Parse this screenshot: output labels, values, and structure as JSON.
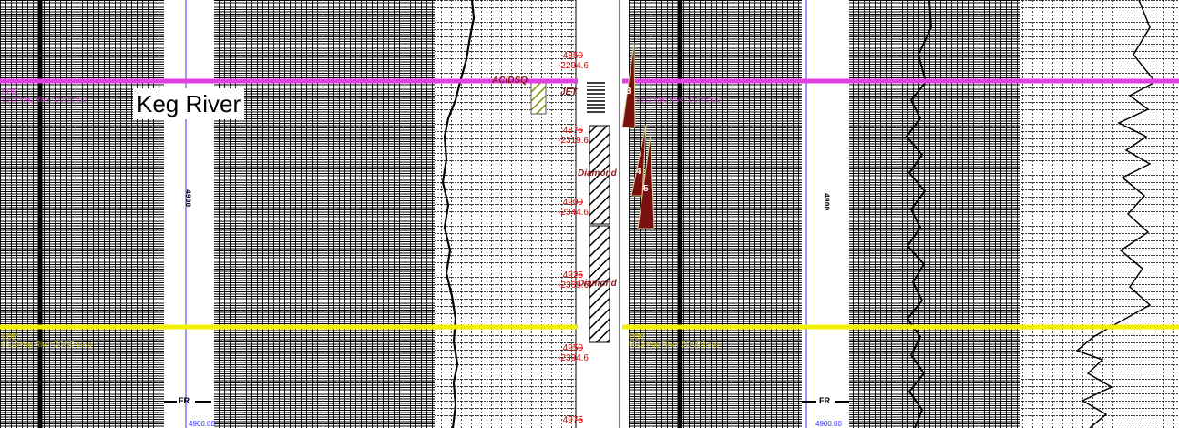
{
  "formation_top": {
    "name": "Keg River",
    "line_color": "#e040e0",
    "left_small_label": "EOR",
    "left_small_sub": "5512 Keg River ZONE top",
    "right_small_sub": "5512 Keg River ZONE top"
  },
  "base_marker": {
    "line_color": "#f5f000",
    "left_small_label": "EOR",
    "left_small_sub": "5512 Keg River ZONE base",
    "right_small_label": "EOR",
    "right_small_sub": "5512 Keg River ZONE base"
  },
  "depth_scale": [
    {
      "md": "4850",
      "ss": "-2294.6"
    },
    {
      "md": "4875",
      "ss": "-2319.6"
    },
    {
      "md": "4900",
      "ss": "-2344.6"
    },
    {
      "md": "4925",
      "ss": "-2369.6"
    },
    {
      "md": "4950",
      "ss": "-2394.6"
    },
    {
      "md": "4975",
      "ss": ""
    }
  ],
  "intervals": {
    "acidize_label": "ACIDSQ",
    "jet_label": "JET",
    "diamond_label_1": "Diamond",
    "diamond_label_2": "Diamond"
  },
  "test_markers": [
    "3",
    "4",
    "5"
  ],
  "log_tracks": {
    "left_depth": "4900",
    "right_depth": "4900",
    "fr_left": "FR",
    "fr_right": "FR",
    "bottom_left_small": "4900.00",
    "bottom_right_small": "4960.00"
  },
  "colors": {
    "pink_marker": "#e040e0",
    "yellow_marker": "#f5f000",
    "depth_red": "#e00000",
    "test_fill": "#7a1010",
    "core_hatch": "#8b8b00"
  }
}
